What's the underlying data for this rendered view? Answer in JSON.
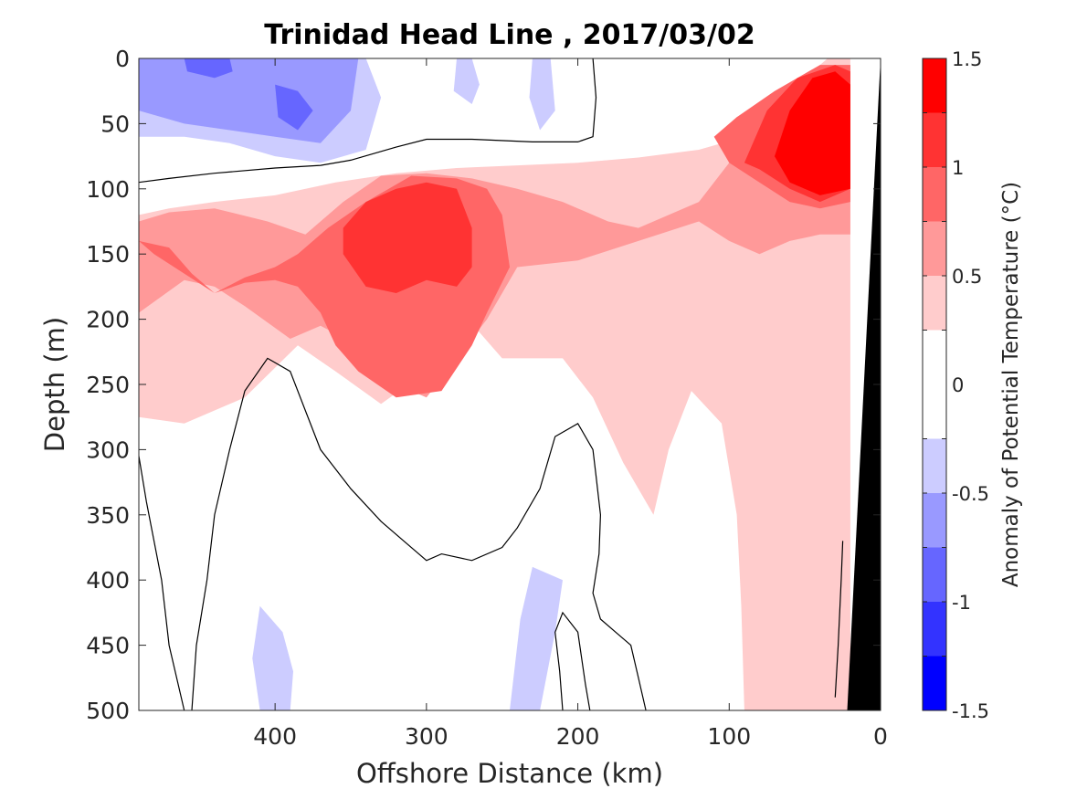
{
  "chart_data": {
    "type": "heatmap",
    "subtype": "filled-contour section",
    "title": "Trinidad Head Line , 2017/03/02",
    "xlabel": "Offshore Distance (km)",
    "ylabel": "Depth (m)",
    "xlim": [
      490,
      0
    ],
    "x_reversed": true,
    "ylim": [
      0,
      500
    ],
    "y_reversed": true,
    "x_ticks": [
      400,
      300,
      200,
      100,
      0
    ],
    "y_ticks": [
      0,
      50,
      100,
      150,
      200,
      250,
      300,
      350,
      400,
      450,
      500
    ],
    "colorbar": {
      "label": "Anomaly of Potential Temperature (°C)",
      "range": [
        -1.5,
        1.5
      ],
      "ticks": [
        -1.5,
        -1,
        -0.5,
        0,
        0.5,
        1,
        1.5
      ],
      "tick_labels": [
        "-1.5",
        "-1",
        "-0.5",
        "0",
        "0.5",
        "1",
        "1.5"
      ],
      "levels": [
        {
          "from": -1.5,
          "to": -1.25,
          "color": "#0000ff"
        },
        {
          "from": -1.25,
          "to": -1.0,
          "color": "#3333ff"
        },
        {
          "from": -1.0,
          "to": -0.75,
          "color": "#6666ff"
        },
        {
          "from": -0.75,
          "to": -0.5,
          "color": "#9999ff"
        },
        {
          "from": -0.5,
          "to": -0.25,
          "color": "#ccccff"
        },
        {
          "from": -0.25,
          "to": 0.25,
          "color": "#ffffff"
        },
        {
          "from": 0.25,
          "to": 0.5,
          "color": "#ffcccc"
        },
        {
          "from": 0.5,
          "to": 0.75,
          "color": "#ff9999"
        },
        {
          "from": 0.75,
          "to": 1.0,
          "color": "#ff6666"
        },
        {
          "from": 1.0,
          "to": 1.25,
          "color": "#ff3333"
        },
        {
          "from": 1.25,
          "to": 1.5,
          "color": "#ff0000"
        }
      ]
    },
    "regions": [
      {
        "level": 0.375,
        "points": [
          [
            490,
            120
          ],
          [
            470,
            115
          ],
          [
            440,
            110
          ],
          [
            400,
            105
          ],
          [
            360,
            95
          ],
          [
            320,
            88
          ],
          [
            280,
            84
          ],
          [
            240,
            82
          ],
          [
            200,
            80
          ],
          [
            160,
            76
          ],
          [
            120,
            70
          ],
          [
            90,
            60
          ],
          [
            60,
            30
          ],
          [
            40,
            5
          ],
          [
            35,
            0
          ],
          [
            20,
            0
          ],
          [
            20,
            500
          ],
          [
            90,
            500
          ],
          [
            92,
            420
          ],
          [
            95,
            350
          ],
          [
            105,
            280
          ],
          [
            125,
            255
          ],
          [
            140,
            300
          ],
          [
            150,
            350
          ],
          [
            170,
            310
          ],
          [
            190,
            260
          ],
          [
            210,
            230
          ],
          [
            250,
            230
          ],
          [
            280,
            190
          ],
          [
            300,
            240
          ],
          [
            330,
            265
          ],
          [
            360,
            240
          ],
          [
            385,
            220
          ],
          [
            420,
            260
          ],
          [
            460,
            280
          ],
          [
            490,
            275
          ]
        ]
      },
      {
        "level": 0.625,
        "points": [
          [
            490,
            125
          ],
          [
            470,
            118
          ],
          [
            440,
            115
          ],
          [
            405,
            125
          ],
          [
            380,
            135
          ],
          [
            355,
            110
          ],
          [
            330,
            90
          ],
          [
            300,
            88
          ],
          [
            270,
            92
          ],
          [
            240,
            100
          ],
          [
            210,
            110
          ],
          [
            180,
            125
          ],
          [
            160,
            130
          ],
          [
            140,
            120
          ],
          [
            120,
            110
          ],
          [
            100,
            80
          ],
          [
            80,
            50
          ],
          [
            55,
            25
          ],
          [
            40,
            15
          ],
          [
            20,
            5
          ],
          [
            20,
            135
          ],
          [
            40,
            135
          ],
          [
            60,
            140
          ],
          [
            80,
            150
          ],
          [
            100,
            140
          ],
          [
            120,
            125
          ],
          [
            160,
            140
          ],
          [
            200,
            155
          ],
          [
            240,
            160
          ],
          [
            260,
            200
          ],
          [
            280,
            230
          ],
          [
            300,
            260
          ],
          [
            320,
            250
          ],
          [
            345,
            220
          ],
          [
            370,
            205
          ],
          [
            390,
            215
          ],
          [
            420,
            190
          ],
          [
            440,
            175
          ],
          [
            460,
            170
          ],
          [
            490,
            195
          ]
        ]
      },
      {
        "level": 0.875,
        "points": [
          [
            490,
            140
          ],
          [
            470,
            145
          ],
          [
            455,
            165
          ],
          [
            440,
            180
          ],
          [
            420,
            168
          ],
          [
            400,
            160
          ],
          [
            385,
            150
          ],
          [
            365,
            130
          ],
          [
            340,
            110
          ],
          [
            310,
            90
          ],
          [
            280,
            92
          ],
          [
            260,
            100
          ],
          [
            250,
            120
          ],
          [
            245,
            160
          ],
          [
            260,
            195
          ],
          [
            270,
            220
          ],
          [
            290,
            255
          ],
          [
            320,
            260
          ],
          [
            345,
            240
          ],
          [
            360,
            220
          ],
          [
            370,
            195
          ],
          [
            385,
            175
          ],
          [
            400,
            170
          ],
          [
            420,
            172
          ],
          [
            440,
            180
          ],
          [
            460,
            165
          ],
          [
            480,
            150
          ],
          [
            490,
            140
          ]
        ]
      },
      {
        "level": 0.875,
        "points": [
          [
            110,
            60
          ],
          [
            95,
            45
          ],
          [
            70,
            25
          ],
          [
            40,
            5
          ],
          [
            20,
            5
          ],
          [
            20,
            110
          ],
          [
            40,
            115
          ],
          [
            60,
            110
          ],
          [
            80,
            95
          ],
          [
            100,
            80
          ],
          [
            110,
            60
          ]
        ]
      },
      {
        "level": 1.125,
        "points": [
          [
            355,
            130
          ],
          [
            340,
            110
          ],
          [
            320,
            100
          ],
          [
            300,
            95
          ],
          [
            280,
            100
          ],
          [
            270,
            130
          ],
          [
            270,
            160
          ],
          [
            280,
            175
          ],
          [
            300,
            170
          ],
          [
            320,
            180
          ],
          [
            340,
            175
          ],
          [
            355,
            150
          ]
        ]
      },
      {
        "level": 1.125,
        "points": [
          [
            90,
            80
          ],
          [
            75,
            40
          ],
          [
            55,
            15
          ],
          [
            30,
            5
          ],
          [
            20,
            10
          ],
          [
            20,
            100
          ],
          [
            40,
            110
          ],
          [
            60,
            100
          ],
          [
            80,
            85
          ],
          [
            90,
            80
          ]
        ]
      },
      {
        "level": 1.375,
        "points": [
          [
            70,
            75
          ],
          [
            60,
            40
          ],
          [
            45,
            15
          ],
          [
            30,
            10
          ],
          [
            20,
            20
          ],
          [
            20,
            100
          ],
          [
            40,
            105
          ],
          [
            60,
            95
          ],
          [
            70,
            75
          ]
        ]
      },
      {
        "level": -0.375,
        "points": [
          [
            490,
            0
          ],
          [
            340,
            0
          ],
          [
            330,
            30
          ],
          [
            340,
            70
          ],
          [
            370,
            80
          ],
          [
            400,
            75
          ],
          [
            430,
            65
          ],
          [
            460,
            60
          ],
          [
            490,
            60
          ]
        ]
      },
      {
        "level": -0.375,
        "points": [
          [
            230,
            0
          ],
          [
            218,
            0
          ],
          [
            215,
            40
          ],
          [
            225,
            55
          ],
          [
            232,
            30
          ]
        ]
      },
      {
        "level": -0.375,
        "points": [
          [
            280,
            0
          ],
          [
            270,
            0
          ],
          [
            265,
            20
          ],
          [
            270,
            35
          ],
          [
            282,
            25
          ]
        ]
      },
      {
        "level": -0.375,
        "points": [
          [
            245,
            500
          ],
          [
            225,
            500
          ],
          [
            215,
            440
          ],
          [
            210,
            400
          ],
          [
            230,
            390
          ],
          [
            238,
            430
          ],
          [
            245,
            500
          ]
        ]
      },
      {
        "level": -0.375,
        "points": [
          [
            410,
            500
          ],
          [
            390,
            500
          ],
          [
            388,
            470
          ],
          [
            395,
            440
          ],
          [
            410,
            420
          ],
          [
            415,
            460
          ],
          [
            410,
            500
          ]
        ]
      },
      {
        "level": -0.625,
        "points": [
          [
            490,
            0
          ],
          [
            345,
            0
          ],
          [
            350,
            40
          ],
          [
            370,
            65
          ],
          [
            400,
            60
          ],
          [
            430,
            55
          ],
          [
            460,
            50
          ],
          [
            490,
            40
          ]
        ]
      },
      {
        "level": -0.875,
        "points": [
          [
            400,
            20
          ],
          [
            385,
            25
          ],
          [
            375,
            40
          ],
          [
            385,
            55
          ],
          [
            398,
            45
          ]
        ]
      },
      {
        "level": -0.875,
        "points": [
          [
            460,
            0
          ],
          [
            430,
            0
          ],
          [
            428,
            10
          ],
          [
            440,
            15
          ],
          [
            458,
            10
          ]
        ]
      }
    ],
    "contours_zero": [
      [
        [
          490,
          95
        ],
        [
          470,
          92
        ],
        [
          440,
          88
        ],
        [
          400,
          84
        ],
        [
          370,
          82
        ],
        [
          350,
          78
        ],
        [
          320,
          68
        ],
        [
          300,
          62
        ],
        [
          270,
          62
        ],
        [
          230,
          64
        ],
        [
          200,
          64
        ],
        [
          190,
          60
        ],
        [
          188,
          30
        ],
        [
          190,
          0
        ]
      ],
      [
        [
          460,
          500
        ],
        [
          470,
          450
        ],
        [
          475,
          400
        ],
        [
          485,
          340
        ],
        [
          490,
          305
        ]
      ],
      [
        [
          455,
          500
        ],
        [
          452,
          450
        ],
        [
          445,
          400
        ],
        [
          440,
          350
        ],
        [
          430,
          300
        ],
        [
          420,
          255
        ],
        [
          405,
          230
        ],
        [
          390,
          240
        ],
        [
          380,
          270
        ],
        [
          370,
          300
        ],
        [
          350,
          330
        ],
        [
          330,
          355
        ],
        [
          315,
          370
        ],
        [
          300,
          385
        ],
        [
          290,
          380
        ],
        [
          270,
          385
        ],
        [
          250,
          375
        ],
        [
          240,
          360
        ],
        [
          225,
          330
        ],
        [
          215,
          290
        ],
        [
          200,
          280
        ],
        [
          190,
          300
        ],
        [
          188,
          320
        ],
        [
          185,
          350
        ],
        [
          186,
          380
        ],
        [
          190,
          410
        ],
        [
          185,
          430
        ],
        [
          175,
          440
        ],
        [
          165,
          450
        ],
        [
          160,
          475
        ],
        [
          155,
          500
        ]
      ],
      [
        [
          210,
          500
        ],
        [
          212,
          470
        ],
        [
          215,
          440
        ],
        [
          210,
          425
        ],
        [
          200,
          440
        ],
        [
          195,
          480
        ],
        [
          192,
          500
        ]
      ],
      [
        [
          30,
          490
        ],
        [
          28,
          450
        ],
        [
          26,
          400
        ],
        [
          25,
          370
        ]
      ]
    ],
    "land_mask": [
      [
        0,
        0
      ],
      [
        22,
        500
      ],
      [
        0,
        500
      ]
    ]
  }
}
